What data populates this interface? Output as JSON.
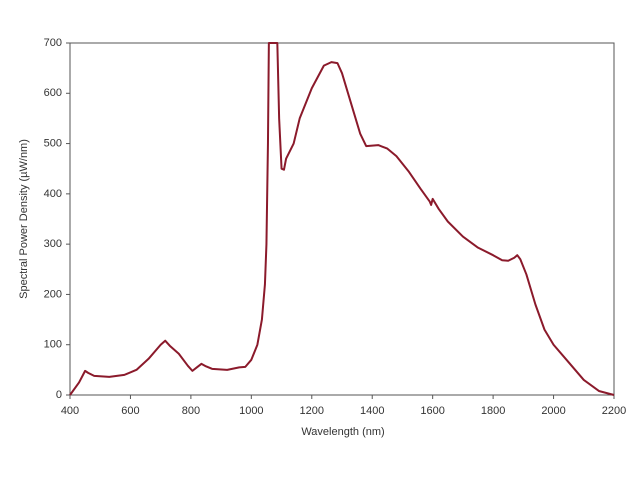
{
  "chart_data": {
    "type": "line",
    "x_label": "Wavelength (nm)",
    "y_label": "Spectral Power Density (µW/nm)",
    "x": [
      400,
      430,
      450,
      460,
      480,
      530,
      580,
      620,
      660,
      700,
      715,
      730,
      760,
      790,
      805,
      820,
      835,
      850,
      870,
      920,
      960,
      980,
      1000,
      1020,
      1035,
      1045,
      1050,
      1055,
      1058,
      1086,
      1092,
      1100,
      1108,
      1115,
      1140,
      1160,
      1200,
      1240,
      1265,
      1285,
      1300,
      1320,
      1340,
      1360,
      1380,
      1420,
      1450,
      1480,
      1520,
      1560,
      1590,
      1595,
      1600,
      1620,
      1650,
      1700,
      1750,
      1800,
      1830,
      1850,
      1870,
      1880,
      1890,
      1910,
      1940,
      1970,
      2000,
      2050,
      2100,
      2150,
      2200
    ],
    "series": [
      {
        "color": "#8b1a2b",
        "values": [
          0,
          25,
          48,
          44,
          38,
          36,
          40,
          50,
          72,
          100,
          108,
          98,
          82,
          58,
          48,
          55,
          62,
          57,
          52,
          50,
          55,
          56,
          70,
          100,
          150,
          220,
          300,
          500,
          700,
          700,
          550,
          450,
          448,
          470,
          500,
          550,
          610,
          655,
          662,
          660,
          640,
          600,
          560,
          520,
          495,
          497,
          490,
          475,
          445,
          410,
          385,
          378,
          390,
          370,
          345,
          315,
          293,
          278,
          268,
          267,
          273,
          278,
          270,
          240,
          180,
          130,
          100,
          65,
          30,
          8,
          0
        ]
      }
    ],
    "xlim": [
      400,
      2200
    ],
    "xticks": [
      400,
      600,
      800,
      1000,
      1200,
      1400,
      1600,
      1800,
      2000,
      2200
    ],
    "ylim": [
      0,
      700
    ],
    "yticks": [
      0,
      100,
      200,
      300,
      400,
      500,
      600,
      700
    ],
    "grid": false
  }
}
